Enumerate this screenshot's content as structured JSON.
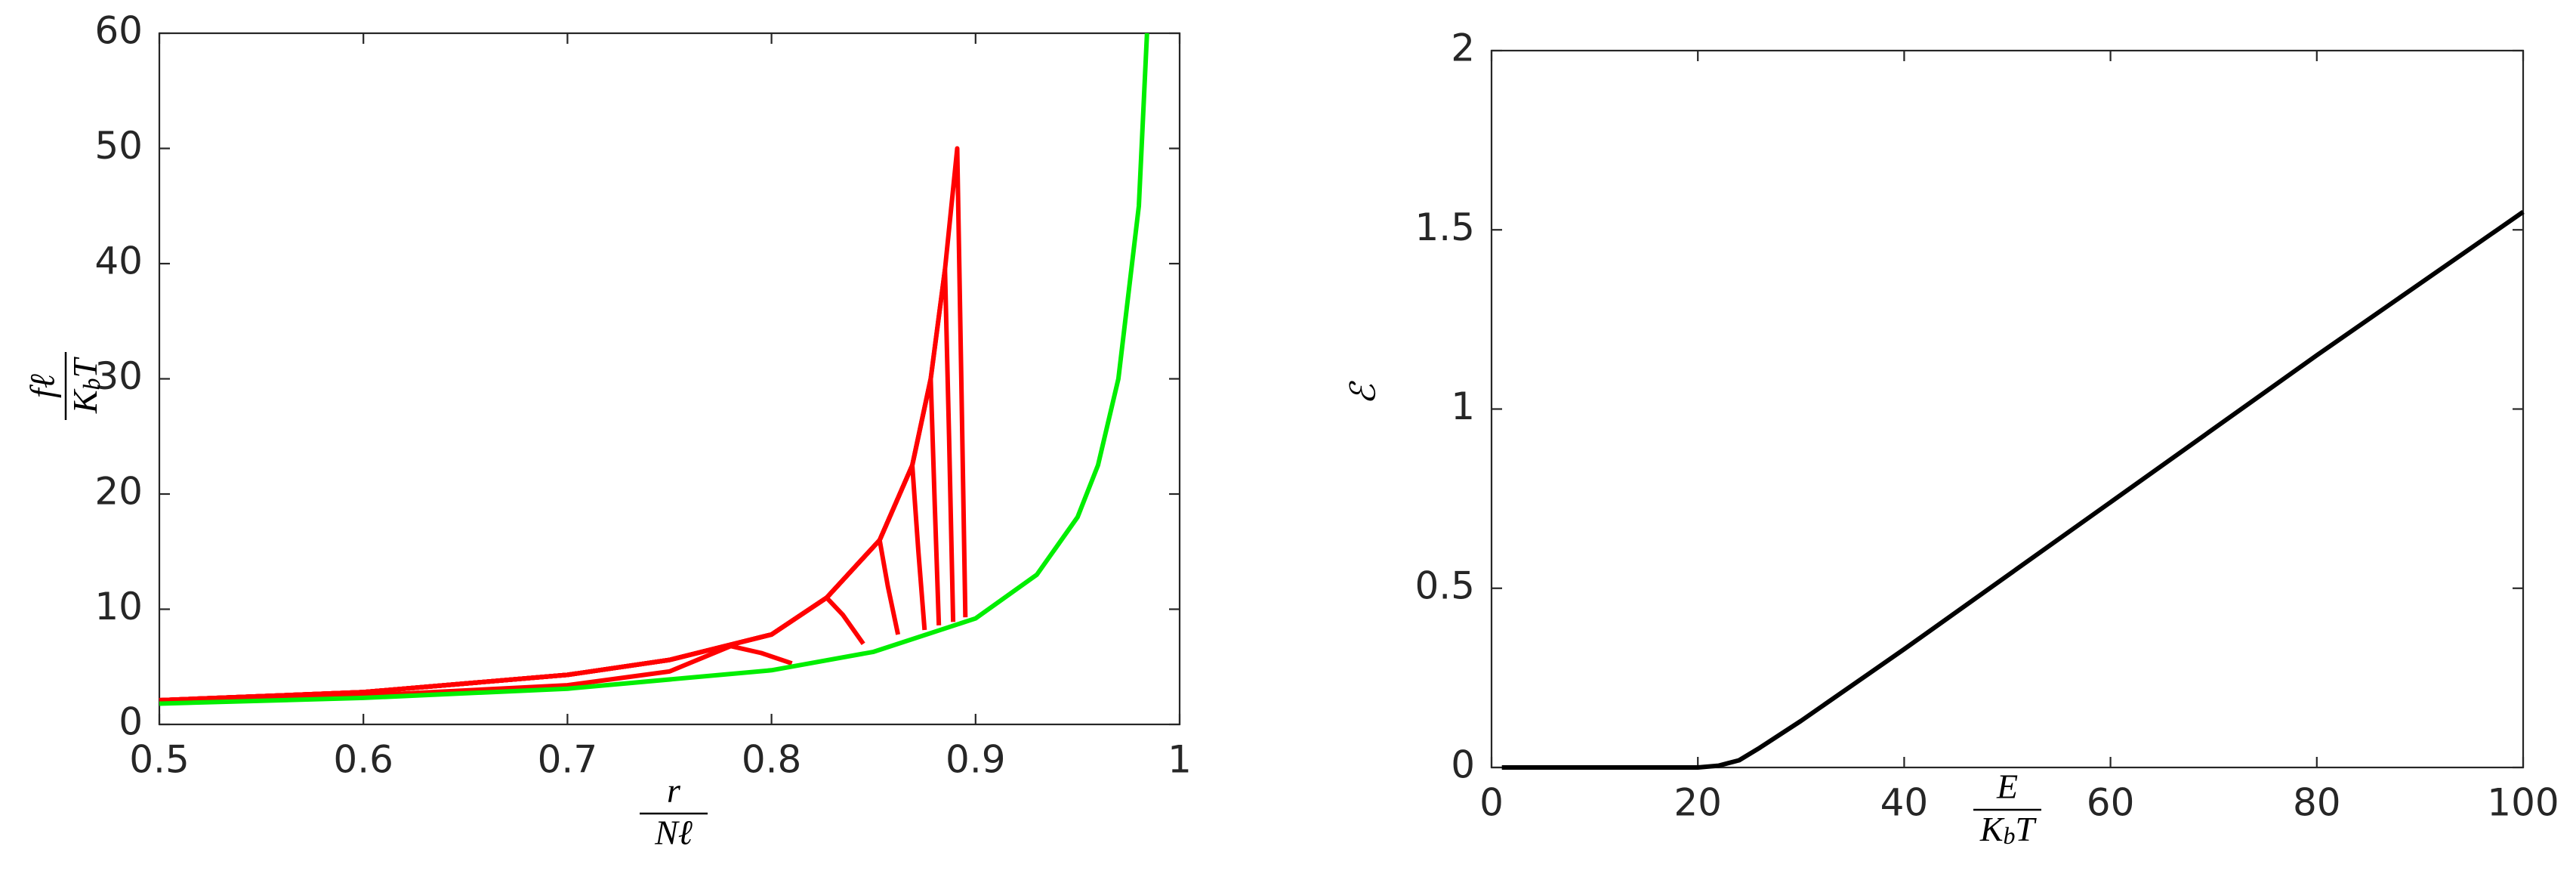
{
  "chart_data": [
    {
      "type": "line",
      "xlabel": {
        "numerator": "r",
        "denominator": "Nℓ"
      },
      "ylabel": {
        "numerator": "fℓ",
        "denominator": [
          "K",
          "b",
          "T"
        ]
      },
      "xlim": [
        0.5,
        1
      ],
      "xticks": [
        0.5,
        0.6,
        0.7,
        0.8,
        0.9,
        1
      ],
      "ylim": [
        0,
        60
      ],
      "yticks": [
        0,
        10,
        20,
        30,
        40,
        50,
        60
      ],
      "series": [
        {
          "color": "#ff0000",
          "x": [
            0.5,
            0.6,
            0.7,
            0.75,
            0.78,
            0.795,
            0.81
          ],
          "values": [
            1.9,
            2.5,
            3.4,
            4.6,
            6.8,
            6.2,
            5.3
          ]
        },
        {
          "color": "#ff0000",
          "x": [
            0.5,
            0.6,
            0.7,
            0.75,
            0.8,
            0.827,
            0.835,
            0.845
          ],
          "values": [
            2.1,
            2.8,
            4.3,
            5.6,
            7.8,
            11,
            9.5,
            7.0
          ]
        },
        {
          "color": "#ff0000",
          "x": [
            0.5,
            0.6,
            0.7,
            0.75,
            0.8,
            0.827,
            0.853,
            0.857,
            0.862
          ],
          "values": [
            2.1,
            2.8,
            4.3,
            5.6,
            7.8,
            11,
            16,
            12,
            7.8
          ]
        },
        {
          "color": "#ff0000",
          "x": [
            0.5,
            0.6,
            0.7,
            0.75,
            0.8,
            0.827,
            0.853,
            0.869,
            0.872,
            0.875
          ],
          "values": [
            2.1,
            2.8,
            4.3,
            5.6,
            7.8,
            11,
            16,
            22.5,
            15,
            8.2
          ]
        },
        {
          "color": "#ff0000",
          "x": [
            0.5,
            0.6,
            0.7,
            0.75,
            0.8,
            0.827,
            0.853,
            0.869,
            0.878,
            0.88,
            0.882
          ],
          "values": [
            2.1,
            2.8,
            4.3,
            5.6,
            7.8,
            11,
            16,
            22.5,
            30,
            19,
            8.6
          ]
        },
        {
          "color": "#ff0000",
          "x": [
            0.5,
            0.6,
            0.7,
            0.75,
            0.8,
            0.827,
            0.853,
            0.869,
            0.878,
            0.885,
            0.887,
            0.889
          ],
          "values": [
            2.1,
            2.8,
            4.3,
            5.6,
            7.8,
            11,
            16,
            22.5,
            30,
            39.5,
            25,
            8.9
          ]
        },
        {
          "color": "#ff0000",
          "x": [
            0.5,
            0.6,
            0.7,
            0.75,
            0.8,
            0.827,
            0.853,
            0.869,
            0.878,
            0.885,
            0.891,
            0.893,
            0.895
          ],
          "values": [
            2.1,
            2.8,
            4.3,
            5.6,
            7.8,
            11,
            16,
            22.5,
            30,
            39.5,
            50,
            30,
            9.3
          ]
        },
        {
          "color": "#00ee00",
          "x": [
            0.5,
            0.6,
            0.7,
            0.8,
            0.85,
            0.9,
            0.93,
            0.95,
            0.96,
            0.97,
            0.98,
            0.984
          ],
          "values": [
            1.8,
            2.3,
            3.1,
            4.7,
            6.3,
            9.2,
            13,
            18,
            22.5,
            30,
            45,
            60
          ]
        }
      ]
    },
    {
      "type": "line",
      "xlabel": {
        "numerator": "E",
        "denominator": [
          "K",
          "b",
          "T"
        ]
      },
      "ylabel": "ℰ",
      "xlim": [
        0,
        100
      ],
      "xticks": [
        0,
        20,
        40,
        60,
        80,
        100
      ],
      "ylim": [
        0,
        2
      ],
      "yticks": [
        0,
        0.5,
        1,
        1.5,
        2
      ],
      "series": [
        {
          "color": "#000000",
          "x": [
            1,
            20,
            22,
            24,
            26,
            30,
            40,
            60,
            80,
            100
          ],
          "values": [
            0,
            0,
            0.005,
            0.02,
            0.055,
            0.13,
            0.33,
            0.74,
            1.15,
            1.55
          ]
        }
      ]
    }
  ]
}
